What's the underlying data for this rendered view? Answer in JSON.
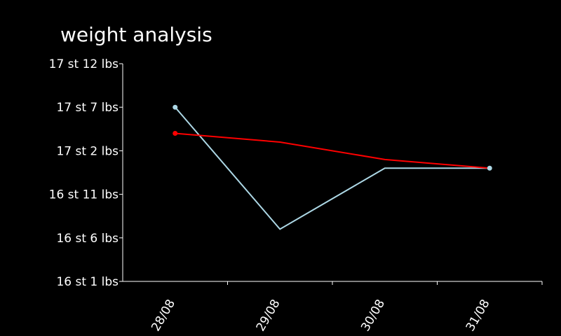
{
  "chart_data": {
    "type": "line",
    "title": "weight analysis",
    "categories": [
      "28/08",
      "29/08",
      "30/08",
      "31/08"
    ],
    "y_unit": "lbs",
    "y_ticks": [
      {
        "value": 225,
        "label": "16 st 1 lbs"
      },
      {
        "value": 230,
        "label": "16 st 6 lbs"
      },
      {
        "value": 235,
        "label": "16 st 11 lbs"
      },
      {
        "value": 240,
        "label": "17 st 2 lbs"
      },
      {
        "value": 245,
        "label": "17 st 7 lbs"
      },
      {
        "value": 250,
        "label": "17 st 12 lbs"
      }
    ],
    "ylim": [
      225,
      250
    ],
    "series": [
      {
        "values": [
          245,
          231,
          238,
          238
        ],
        "color": "#add8e6",
        "marker_indices": [
          0,
          3
        ]
      },
      {
        "values": [
          242,
          241,
          239,
          238
        ],
        "color": "#ff0000",
        "marker_indices": [
          0
        ]
      }
    ]
  }
}
